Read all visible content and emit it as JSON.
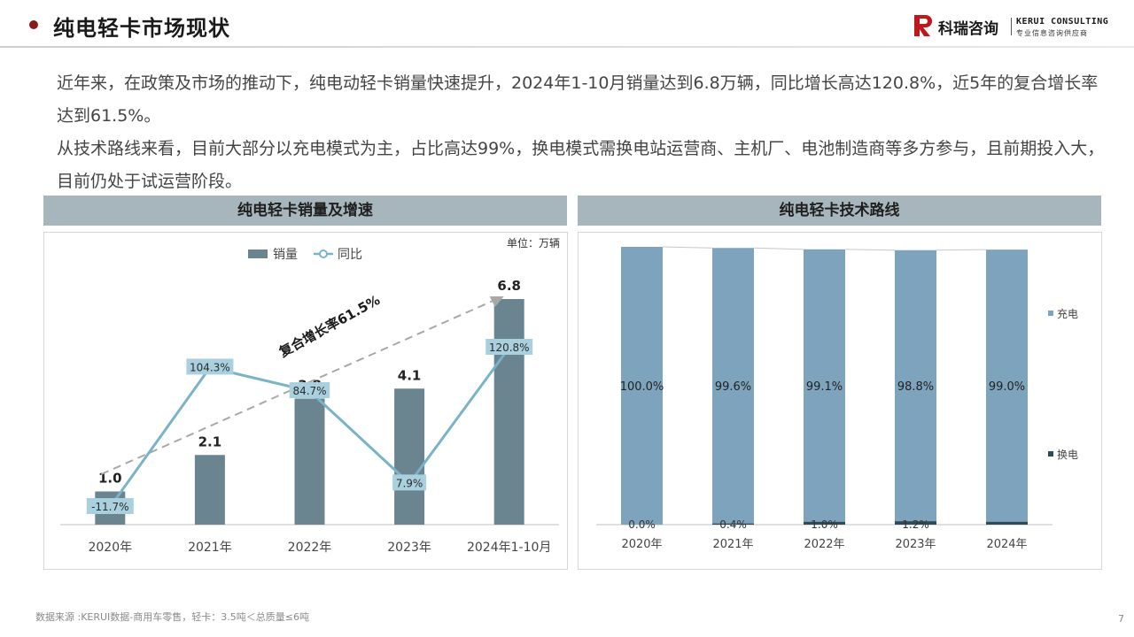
{
  "header": {
    "title": "纯电轻卡市场现状",
    "logo_cn": "科瑞咨询",
    "logo_en": "KERUI CONSULTING",
    "logo_sub": "专业信息咨询供应商"
  },
  "intro": {
    "para1": "近年来，在政策及市场的推动下，纯电动轻卡销量快速提升，2024年1-10月销量达到6.8万辆，同比增长高达120.8%，近5年的复合增长率达到61.5%。",
    "para2": "从技术路线来看，目前大部分以充电模式为主，占比高达99%，换电模式需换电站运营商、主机厂、电池制造商等多方参与，且前期投入大，目前仍处于试运营阶段。"
  },
  "left_panel": {
    "title": "纯电轻卡销量及增速"
  },
  "right_panel": {
    "title": "纯电轻卡技术路线"
  },
  "chart_data": [
    {
      "type": "bar",
      "title": "纯电轻卡销量及增速",
      "unit": "单位：万辆",
      "categories": [
        "2020年",
        "2021年",
        "2022年",
        "2023年",
        "2024年1-10月"
      ],
      "series": [
        {
          "name": "销量",
          "type": "bar",
          "values": [
            1.0,
            2.1,
            3.8,
            4.1,
            6.8
          ],
          "labels": [
            "1.0",
            "2.1",
            "3.8",
            "4.1",
            "6.8"
          ],
          "color": "#6b8590"
        },
        {
          "name": "同比",
          "type": "line",
          "values": [
            -11.7,
            104.3,
            84.7,
            7.9,
            120.8
          ],
          "labels": [
            "-11.7%",
            "104.3%",
            "84.7%",
            "7.9%",
            "120.8%"
          ],
          "color": "#7ab3c8"
        }
      ],
      "annotation": "复合增长率61.5%",
      "legend_position": "top",
      "grid": false
    },
    {
      "type": "bar",
      "stacked": true,
      "title": "纯电轻卡技术路线",
      "categories": [
        "2020年",
        "2021年",
        "2022年",
        "2023年",
        "2024年"
      ],
      "series": [
        {
          "name": "充电",
          "values": [
            100.0,
            99.6,
            99.1,
            98.8,
            99.0
          ],
          "labels": [
            "100.0%",
            "99.6%",
            "99.1%",
            "98.8%",
            "99.0%"
          ],
          "color": "#7da3bd"
        },
        {
          "name": "换电",
          "values": [
            0.0,
            0.4,
            1.0,
            1.2,
            1.0
          ],
          "labels": [
            "0.0%",
            "0.4%",
            "1.0%",
            "1.2%",
            ""
          ],
          "color": "#2e4a57"
        }
      ],
      "ylim": [
        0,
        100
      ],
      "legend_position": "right",
      "grid": false
    }
  ],
  "footer": {
    "source": "数据来源 :KERUI数据-商用车零售，轻卡：3.5吨＜总质量≤6吨",
    "page": "7"
  }
}
